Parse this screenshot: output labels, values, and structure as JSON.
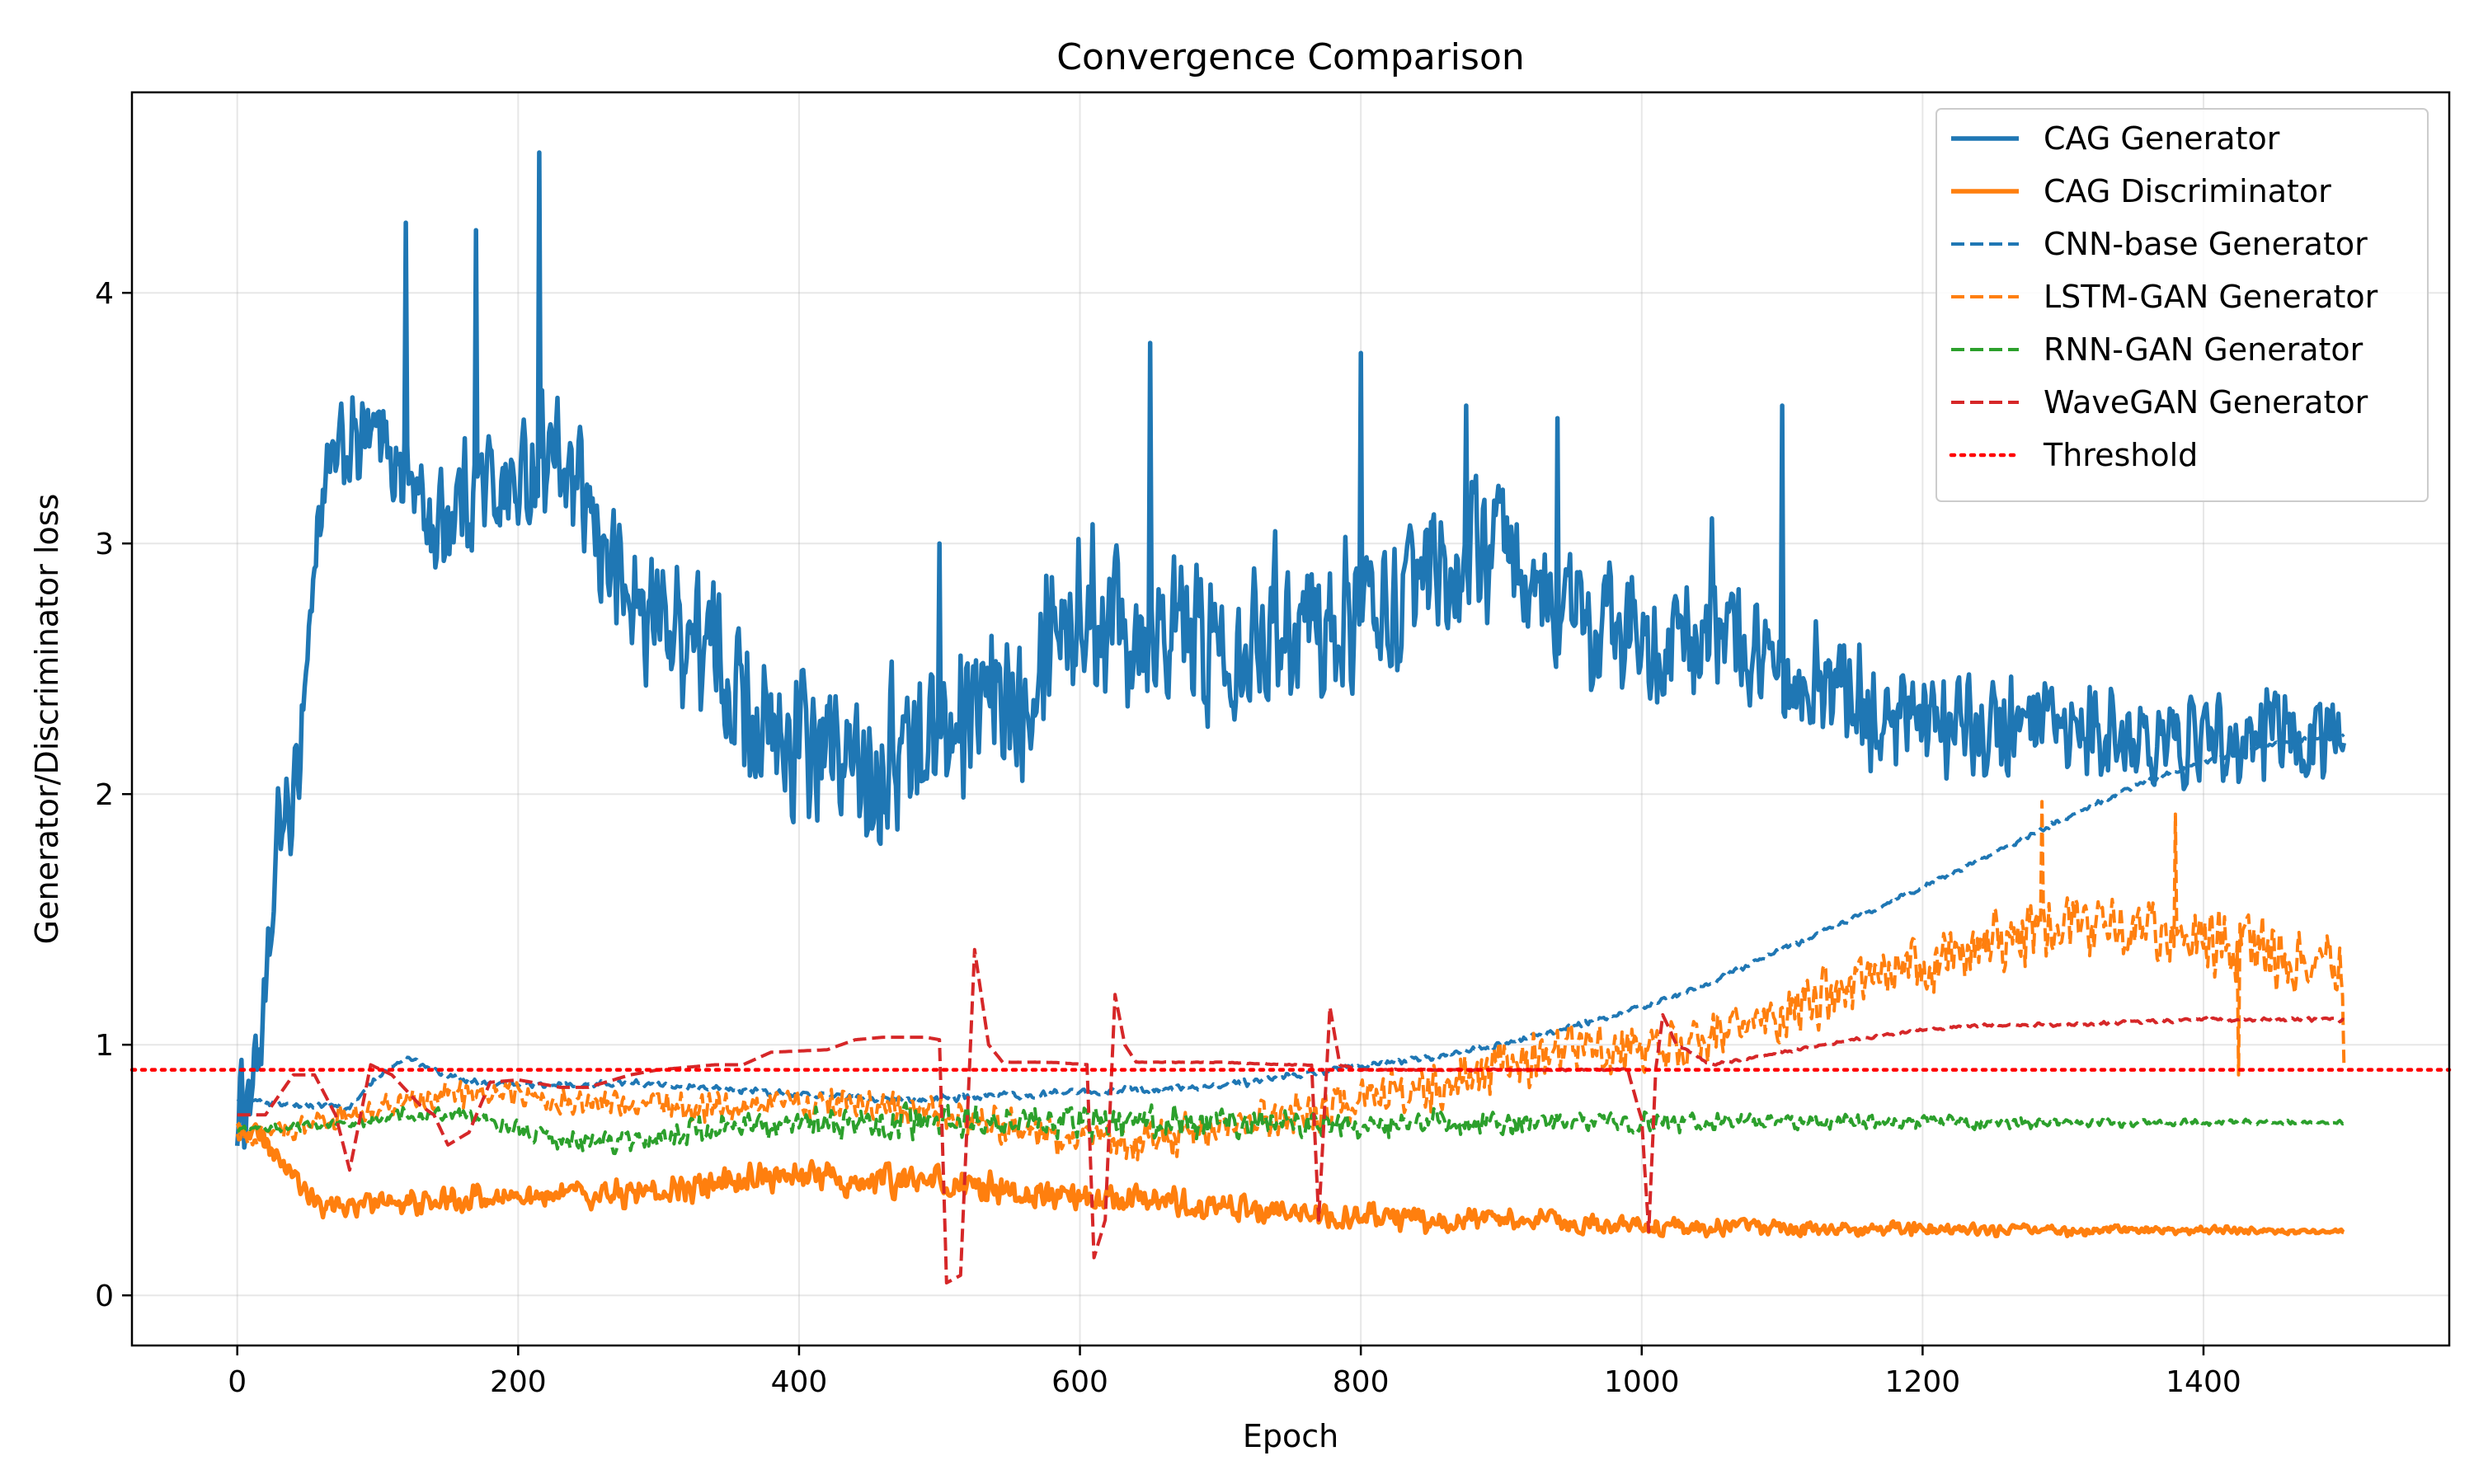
{
  "chart_data": {
    "type": "line",
    "title": "Convergence Comparison",
    "xlabel": "Epoch",
    "ylabel": "Generator/Discriminator loss",
    "xlim": [
      -75,
      1575
    ],
    "ylim": [
      -0.2,
      4.8
    ],
    "xticks": [
      0,
      200,
      400,
      600,
      800,
      1000,
      1200,
      1400
    ],
    "yticks": [
      0,
      1,
      2,
      3,
      4
    ],
    "grid": true,
    "legend_position": "top-right",
    "colors": {
      "blue": "#1f77b4",
      "orange": "#ff7f0e",
      "green": "#2ca02c",
      "red": "#d62728",
      "threshold": "#ff0000"
    },
    "series": [
      {
        "name": "CAG Generator",
        "style": "solid",
        "color": "#1f77b4",
        "noise": [
          0.22,
          0.42,
          0.2
        ],
        "points": [
          [
            0,
            0.7
          ],
          [
            10,
            0.85
          ],
          [
            20,
            1.1
          ],
          [
            30,
            1.9
          ],
          [
            40,
            1.9
          ],
          [
            50,
            2.6
          ],
          [
            60,
            3.2
          ],
          [
            80,
            3.4
          ],
          [
            100,
            3.4
          ],
          [
            120,
            3.3
          ],
          [
            140,
            3.05
          ],
          [
            160,
            3.2
          ],
          [
            180,
            3.25
          ],
          [
            200,
            3.2
          ],
          [
            220,
            3.4
          ],
          [
            240,
            3.2
          ],
          [
            260,
            3.0
          ],
          [
            280,
            2.75
          ],
          [
            300,
            2.7
          ],
          [
            320,
            2.65
          ],
          [
            340,
            2.55
          ],
          [
            360,
            2.4
          ],
          [
            380,
            2.2
          ],
          [
            400,
            2.2
          ],
          [
            420,
            2.15
          ],
          [
            440,
            2.1
          ],
          [
            460,
            2.15
          ],
          [
            480,
            2.2
          ],
          [
            500,
            2.25
          ],
          [
            520,
            2.3
          ],
          [
            540,
            2.35
          ],
          [
            560,
            2.45
          ],
          [
            580,
            2.75
          ],
          [
            600,
            2.7
          ],
          [
            620,
            2.75
          ],
          [
            640,
            2.7
          ],
          [
            660,
            2.7
          ],
          [
            680,
            2.6
          ],
          [
            700,
            2.6
          ],
          [
            720,
            2.65
          ],
          [
            740,
            2.7
          ],
          [
            760,
            2.7
          ],
          [
            780,
            2.65
          ],
          [
            800,
            2.75
          ],
          [
            820,
            2.7
          ],
          [
            840,
            2.8
          ],
          [
            860,
            2.85
          ],
          [
            880,
            3.0
          ],
          [
            900,
            2.95
          ],
          [
            920,
            2.8
          ],
          [
            940,
            2.75
          ],
          [
            960,
            2.7
          ],
          [
            980,
            2.65
          ],
          [
            1000,
            2.6
          ],
          [
            1020,
            2.6
          ],
          [
            1040,
            2.62
          ],
          [
            1060,
            2.62
          ],
          [
            1080,
            2.6
          ],
          [
            1100,
            2.55
          ],
          [
            1120,
            2.45
          ],
          [
            1140,
            2.4
          ],
          [
            1160,
            2.32
          ],
          [
            1180,
            2.3
          ],
          [
            1200,
            2.28
          ],
          [
            1250,
            2.25
          ],
          [
            1300,
            2.23
          ],
          [
            1350,
            2.22
          ],
          [
            1400,
            2.22
          ],
          [
            1450,
            2.25
          ],
          [
            1500,
            2.22
          ]
        ],
        "spikes": [
          [
            120,
            4.28
          ],
          [
            170,
            4.25
          ],
          [
            215,
            4.56
          ],
          [
            500,
            3.0
          ],
          [
            650,
            3.8
          ],
          [
            800,
            3.76
          ],
          [
            875,
            3.55
          ],
          [
            940,
            3.5
          ],
          [
            1050,
            3.1
          ],
          [
            1100,
            3.55
          ]
        ]
      },
      {
        "name": "CAG Discriminator",
        "style": "solid",
        "color": "#ff7f0e",
        "noise": [
          0.05,
          0.08,
          0.012
        ],
        "points": [
          [
            0,
            0.68
          ],
          [
            20,
            0.62
          ],
          [
            30,
            0.55
          ],
          [
            40,
            0.45
          ],
          [
            60,
            0.36
          ],
          [
            100,
            0.36
          ],
          [
            150,
            0.38
          ],
          [
            200,
            0.4
          ],
          [
            250,
            0.4
          ],
          [
            300,
            0.42
          ],
          [
            350,
            0.45
          ],
          [
            400,
            0.48
          ],
          [
            450,
            0.45
          ],
          [
            500,
            0.45
          ],
          [
            550,
            0.43
          ],
          [
            600,
            0.38
          ],
          [
            650,
            0.38
          ],
          [
            700,
            0.35
          ],
          [
            750,
            0.33
          ],
          [
            800,
            0.32
          ],
          [
            850,
            0.3
          ],
          [
            900,
            0.3
          ],
          [
            950,
            0.29
          ],
          [
            1000,
            0.28
          ],
          [
            1100,
            0.27
          ],
          [
            1200,
            0.265
          ],
          [
            1300,
            0.26
          ],
          [
            1400,
            0.26
          ],
          [
            1500,
            0.255
          ]
        ],
        "spikes": []
      },
      {
        "name": "CNN-base Generator",
        "style": "dashed",
        "color": "#1f77b4",
        "noise": [
          0.012,
          0.018,
          0.01
        ],
        "points": [
          [
            0,
            0.78
          ],
          [
            40,
            0.76
          ],
          [
            80,
            0.75
          ],
          [
            100,
            0.87
          ],
          [
            120,
            0.95
          ],
          [
            140,
            0.9
          ],
          [
            160,
            0.86
          ],
          [
            200,
            0.84
          ],
          [
            240,
            0.84
          ],
          [
            280,
            0.85
          ],
          [
            320,
            0.83
          ],
          [
            360,
            0.82
          ],
          [
            400,
            0.8
          ],
          [
            440,
            0.79
          ],
          [
            480,
            0.78
          ],
          [
            520,
            0.79
          ],
          [
            560,
            0.8
          ],
          [
            600,
            0.81
          ],
          [
            640,
            0.82
          ],
          [
            680,
            0.83
          ],
          [
            720,
            0.85
          ],
          [
            760,
            0.88
          ],
          [
            800,
            0.92
          ],
          [
            850,
            0.95
          ],
          [
            900,
            1.0
          ],
          [
            950,
            1.07
          ],
          [
            1000,
            1.15
          ],
          [
            1050,
            1.25
          ],
          [
            1100,
            1.38
          ],
          [
            1150,
            1.5
          ],
          [
            1200,
            1.63
          ],
          [
            1250,
            1.76
          ],
          [
            1300,
            1.9
          ],
          [
            1350,
            2.03
          ],
          [
            1400,
            2.13
          ],
          [
            1450,
            2.2
          ],
          [
            1500,
            2.24
          ]
        ],
        "spikes": []
      },
      {
        "name": "LSTM-GAN Generator",
        "style": "dashed",
        "color": "#ff7f0e",
        "noise": [
          0.05,
          0.08,
          0.18
        ],
        "points": [
          [
            0,
            0.62
          ],
          [
            40,
            0.66
          ],
          [
            100,
            0.75
          ],
          [
            150,
            0.8
          ],
          [
            200,
            0.8
          ],
          [
            250,
            0.77
          ],
          [
            300,
            0.76
          ],
          [
            350,
            0.75
          ],
          [
            400,
            0.76
          ],
          [
            450,
            0.76
          ],
          [
            500,
            0.72
          ],
          [
            550,
            0.68
          ],
          [
            600,
            0.62
          ],
          [
            650,
            0.62
          ],
          [
            700,
            0.66
          ],
          [
            750,
            0.7
          ],
          [
            800,
            0.78
          ],
          [
            850,
            0.83
          ],
          [
            900,
            0.9
          ],
          [
            950,
            0.98
          ],
          [
            1000,
            0.98
          ],
          [
            1050,
            1.04
          ],
          [
            1100,
            1.14
          ],
          [
            1150,
            1.24
          ],
          [
            1200,
            1.32
          ],
          [
            1250,
            1.42
          ],
          [
            1300,
            1.5
          ],
          [
            1350,
            1.5
          ],
          [
            1400,
            1.42
          ],
          [
            1450,
            1.35
          ],
          [
            1500,
            1.3
          ]
        ],
        "spikes": [
          [
            1285,
            1.97
          ],
          [
            1380,
            1.92
          ],
          [
            1425,
            0.88
          ],
          [
            1500,
            0.92
          ]
        ]
      },
      {
        "name": "RNN-GAN Generator",
        "style": "dashed",
        "color": "#2ca02c",
        "noise": [
          0.015,
          0.09,
          0.008
        ],
        "points": [
          [
            0,
            0.66
          ],
          [
            40,
            0.67
          ],
          [
            80,
            0.69
          ],
          [
            120,
            0.72
          ],
          [
            160,
            0.72
          ],
          [
            200,
            0.66
          ],
          [
            250,
            0.6
          ],
          [
            300,
            0.64
          ],
          [
            350,
            0.67
          ],
          [
            400,
            0.69
          ],
          [
            450,
            0.69
          ],
          [
            500,
            0.69
          ],
          [
            600,
            0.69
          ],
          [
            700,
            0.69
          ],
          [
            800,
            0.69
          ],
          [
            900,
            0.69
          ],
          [
            1000,
            0.69
          ],
          [
            1100,
            0.69
          ],
          [
            1200,
            0.69
          ],
          [
            1300,
            0.69
          ],
          [
            1400,
            0.69
          ],
          [
            1500,
            0.69
          ]
        ],
        "spikes": []
      },
      {
        "name": "WaveGAN Generator",
        "style": "dashed",
        "color": "#d62728",
        "noise": [
          0,
          0,
          0.01
        ],
        "points": [
          [
            0,
            0.72
          ],
          [
            20,
            0.72
          ],
          [
            40,
            0.88
          ],
          [
            55,
            0.88
          ],
          [
            70,
            0.72
          ],
          [
            80,
            0.5
          ],
          [
            95,
            0.92
          ],
          [
            110,
            0.88
          ],
          [
            130,
            0.76
          ],
          [
            140,
            0.72
          ],
          [
            150,
            0.6
          ],
          [
            165,
            0.65
          ],
          [
            180,
            0.85
          ],
          [
            200,
            0.86
          ],
          [
            230,
            0.83
          ],
          [
            250,
            0.83
          ],
          [
            280,
            0.88
          ],
          [
            300,
            0.9
          ],
          [
            340,
            0.92
          ],
          [
            360,
            0.92
          ],
          [
            380,
            0.97
          ],
          [
            420,
            0.98
          ],
          [
            440,
            1.02
          ],
          [
            460,
            1.03
          ],
          [
            490,
            1.03
          ],
          [
            500,
            1.02
          ],
          [
            505,
            0.05
          ],
          [
            515,
            0.08
          ],
          [
            525,
            1.38
          ],
          [
            535,
            1.0
          ],
          [
            545,
            0.93
          ],
          [
            580,
            0.93
          ],
          [
            605,
            0.92
          ],
          [
            610,
            0.15
          ],
          [
            618,
            0.3
          ],
          [
            625,
            1.2
          ],
          [
            632,
            1.0
          ],
          [
            640,
            0.93
          ],
          [
            700,
            0.93
          ],
          [
            750,
            0.92
          ],
          [
            765,
            0.92
          ],
          [
            770,
            0.3
          ],
          [
            778,
            1.15
          ],
          [
            785,
            0.92
          ],
          [
            800,
            0.9
          ],
          [
            900,
            0.9
          ],
          [
            950,
            0.9
          ],
          [
            990,
            0.9
          ],
          [
            1000,
            0.7
          ],
          [
            1005,
            0.25
          ],
          [
            1010,
            0.9
          ],
          [
            1015,
            1.12
          ],
          [
            1025,
            1.0
          ],
          [
            1050,
            0.92
          ],
          [
            1100,
            0.97
          ],
          [
            1150,
            1.02
          ],
          [
            1200,
            1.06
          ],
          [
            1250,
            1.08
          ],
          [
            1300,
            1.08
          ],
          [
            1350,
            1.09
          ],
          [
            1400,
            1.1
          ],
          [
            1450,
            1.1
          ],
          [
            1500,
            1.1
          ]
        ],
        "spikes": []
      },
      {
        "name": "Threshold",
        "style": "dotted",
        "color": "#ff0000",
        "noise": [
          0,
          0,
          0
        ],
        "points": [
          [
            -75,
            0.9
          ],
          [
            1575,
            0.9
          ]
        ],
        "spikes": []
      }
    ]
  }
}
